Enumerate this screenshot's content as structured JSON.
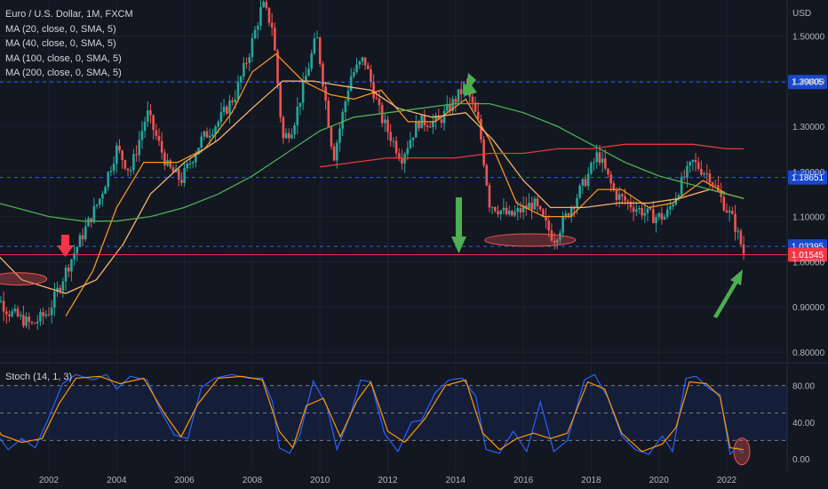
{
  "chart_data": [
    {
      "type": "candlestick",
      "title": "Euro / U.S. Dollar, 1M, FXCM",
      "indicators": [
        "MA (20, close, 0, SMA, 5)",
        "MA (40, close, 0, SMA, 5)",
        "MA (100, close, 0, SMA, 5)",
        "MA (200, close, 0, SMA, 5)"
      ],
      "y_unit": "USD",
      "y_ticks": [
        "1.50000",
        "1.40000",
        "1.30000",
        "1.20000",
        "1.10000",
        "1.00000",
        "0.90000",
        "0.80000"
      ],
      "x_ticks": [
        "2002",
        "2004",
        "2006",
        "2008",
        "2010",
        "2012",
        "2014",
        "2016",
        "2018",
        "2020",
        "2022"
      ],
      "ylim": [
        0.77,
        1.62
      ],
      "close_path": [
        [
          2000.0,
          0.97
        ],
        [
          2000.8,
          0.89
        ],
        [
          2001.5,
          0.86
        ],
        [
          2002.0,
          0.89
        ],
        [
          2002.5,
          0.98
        ],
        [
          2003.0,
          1.06
        ],
        [
          2003.5,
          1.14
        ],
        [
          2004.0,
          1.25
        ],
        [
          2004.4,
          1.2
        ],
        [
          2004.9,
          1.33
        ],
        [
          2005.5,
          1.21
        ],
        [
          2005.9,
          1.18
        ],
        [
          2006.5,
          1.27
        ],
        [
          2007.0,
          1.31
        ],
        [
          2007.5,
          1.37
        ],
        [
          2007.9,
          1.46
        ],
        [
          2008.3,
          1.57
        ],
        [
          2008.6,
          1.52
        ],
        [
          2008.9,
          1.27
        ],
        [
          2009.2,
          1.3
        ],
        [
          2009.9,
          1.5
        ],
        [
          2010.4,
          1.23
        ],
        [
          2010.9,
          1.41
        ],
        [
          2011.3,
          1.45
        ],
        [
          2011.8,
          1.32
        ],
        [
          2012.4,
          1.23
        ],
        [
          2012.9,
          1.31
        ],
        [
          2013.5,
          1.31
        ],
        [
          2014.3,
          1.39
        ],
        [
          2014.7,
          1.3
        ],
        [
          2015.0,
          1.13
        ],
        [
          2015.6,
          1.1
        ],
        [
          2016.3,
          1.13
        ],
        [
          2016.9,
          1.05
        ],
        [
          2017.4,
          1.12
        ],
        [
          2017.9,
          1.19
        ],
        [
          2018.2,
          1.24
        ],
        [
          2018.7,
          1.15
        ],
        [
          2019.3,
          1.12
        ],
        [
          2019.8,
          1.1
        ],
        [
          2020.2,
          1.1
        ],
        [
          2020.7,
          1.18
        ],
        [
          2021.0,
          1.22
        ],
        [
          2021.5,
          1.19
        ],
        [
          2021.9,
          1.13
        ],
        [
          2022.2,
          1.09
        ],
        [
          2022.5,
          1.02
        ]
      ],
      "ma_series": [
        {
          "name": "MA (20, close, 0, SMA, 5)",
          "color": "#f79420",
          "points": [
            [
              2002.5,
              0.88
            ],
            [
              2003.3,
              0.98
            ],
            [
              2004.0,
              1.12
            ],
            [
              2004.8,
              1.22
            ],
            [
              2005.8,
              1.22
            ],
            [
              2006.6,
              1.25
            ],
            [
              2007.4,
              1.33
            ],
            [
              2008.0,
              1.42
            ],
            [
              2008.7,
              1.46
            ],
            [
              2009.5,
              1.4
            ],
            [
              2010.3,
              1.37
            ],
            [
              2011.0,
              1.36
            ],
            [
              2011.8,
              1.38
            ],
            [
              2012.6,
              1.31
            ],
            [
              2013.4,
              1.31
            ],
            [
              2014.3,
              1.36
            ],
            [
              2015.0,
              1.27
            ],
            [
              2015.8,
              1.13
            ],
            [
              2016.6,
              1.1
            ],
            [
              2017.4,
              1.1
            ],
            [
              2018.2,
              1.16
            ],
            [
              2018.9,
              1.16
            ],
            [
              2019.7,
              1.12
            ],
            [
              2020.4,
              1.13
            ],
            [
              2021.3,
              1.18
            ],
            [
              2022.0,
              1.15
            ],
            [
              2022.5,
              1.14
            ]
          ]
        },
        {
          "name": "MA (40, close, 0, SMA, 5)",
          "color": "#f6b26b",
          "points": [
            [
              2000.3,
              1.03
            ],
            [
              2001.2,
              0.96
            ],
            [
              2002.5,
              0.93
            ],
            [
              2003.4,
              0.96
            ],
            [
              2004.2,
              1.04
            ],
            [
              2005.0,
              1.15
            ],
            [
              2006.0,
              1.22
            ],
            [
              2007.0,
              1.27
            ],
            [
              2008.0,
              1.34
            ],
            [
              2008.9,
              1.4
            ],
            [
              2009.8,
              1.4
            ],
            [
              2010.6,
              1.39
            ],
            [
              2011.5,
              1.38
            ],
            [
              2012.3,
              1.34
            ],
            [
              2013.3,
              1.32
            ],
            [
              2014.3,
              1.33
            ],
            [
              2015.1,
              1.27
            ],
            [
              2016.0,
              1.18
            ],
            [
              2016.8,
              1.12
            ],
            [
              2017.8,
              1.12
            ],
            [
              2018.8,
              1.13
            ],
            [
              2019.7,
              1.13
            ],
            [
              2020.6,
              1.14
            ],
            [
              2021.5,
              1.16
            ],
            [
              2022.5,
              1.14
            ]
          ]
        },
        {
          "name": "MA (100, close, 0, SMA, 5)",
          "color": "#4caf50",
          "points": [
            [
              2000.0,
              1.14
            ],
            [
              2001.0,
              1.12
            ],
            [
              2002.0,
              1.1
            ],
            [
              2003.0,
              1.09
            ],
            [
              2004.0,
              1.09
            ],
            [
              2005.0,
              1.1
            ],
            [
              2006.0,
              1.12
            ],
            [
              2007.0,
              1.15
            ],
            [
              2008.0,
              1.19
            ],
            [
              2009.0,
              1.24
            ],
            [
              2010.0,
              1.29
            ],
            [
              2011.0,
              1.32
            ],
            [
              2012.0,
              1.33
            ],
            [
              2013.0,
              1.34
            ],
            [
              2014.0,
              1.35
            ],
            [
              2015.0,
              1.35
            ],
            [
              2016.0,
              1.33
            ],
            [
              2017.0,
              1.3
            ],
            [
              2018.0,
              1.26
            ],
            [
              2019.0,
              1.22
            ],
            [
              2020.0,
              1.19
            ],
            [
              2021.0,
              1.17
            ],
            [
              2022.0,
              1.15
            ],
            [
              2022.5,
              1.14
            ]
          ]
        },
        {
          "name": "MA (200, close, 0, SMA, 5)",
          "color": "#e53935",
          "points": [
            [
              2010.0,
              1.21
            ],
            [
              2011.0,
              1.22
            ],
            [
              2012.0,
              1.23
            ],
            [
              2013.0,
              1.23
            ],
            [
              2014.0,
              1.23
            ],
            [
              2015.0,
              1.24
            ],
            [
              2016.0,
              1.24
            ],
            [
              2017.0,
              1.25
            ],
            [
              2018.0,
              1.25
            ],
            [
              2019.0,
              1.26
            ],
            [
              2020.0,
              1.26
            ],
            [
              2021.0,
              1.26
            ],
            [
              2022.0,
              1.25
            ],
            [
              2022.5,
              1.25
            ]
          ]
        }
      ],
      "price_lines": [
        {
          "label": "1.39805",
          "value": 1.39805,
          "badge": "#1848cc"
        },
        {
          "label": "1.18651",
          "value": 1.18651,
          "badge": "#1848cc"
        },
        {
          "label": "1.03395",
          "value": 1.03395,
          "badge": "#1848cc"
        },
        {
          "label": "1.01545",
          "value": 1.01545,
          "badge": "#f23645"
        }
      ]
    },
    {
      "type": "line",
      "title": "Stoch (14, 1, 3)",
      "y_ticks": [
        "80.00",
        "40.00",
        "0.00"
      ],
      "ylim": [
        -8,
        100
      ],
      "band": [
        20,
        80
      ],
      "series": [
        {
          "color": "#2962ff",
          "points": [
            [
              2000.0,
              58
            ],
            [
              2000.4,
              30
            ],
            [
              2000.8,
              10
            ],
            [
              2001.2,
              22
            ],
            [
              2001.6,
              12
            ],
            [
              2002.0,
              45
            ],
            [
              2002.4,
              82
            ],
            [
              2002.8,
              92
            ],
            [
              2003.3,
              86
            ],
            [
              2003.7,
              92
            ],
            [
              2004.0,
              76
            ],
            [
              2004.4,
              90
            ],
            [
              2004.9,
              86
            ],
            [
              2005.3,
              52
            ],
            [
              2005.7,
              26
            ],
            [
              2006.1,
              22
            ],
            [
              2006.5,
              78
            ],
            [
              2006.9,
              88
            ],
            [
              2007.4,
              92
            ],
            [
              2007.9,
              88
            ],
            [
              2008.3,
              88
            ],
            [
              2008.6,
              62
            ],
            [
              2008.8,
              12
            ],
            [
              2009.1,
              6
            ],
            [
              2009.4,
              25
            ],
            [
              2009.8,
              85
            ],
            [
              2010.2,
              58
            ],
            [
              2010.5,
              10
            ],
            [
              2010.9,
              48
            ],
            [
              2011.2,
              86
            ],
            [
              2011.5,
              84
            ],
            [
              2011.9,
              28
            ],
            [
              2012.3,
              8
            ],
            [
              2012.7,
              40
            ],
            [
              2013.0,
              42
            ],
            [
              2013.4,
              72
            ],
            [
              2013.8,
              86
            ],
            [
              2014.2,
              88
            ],
            [
              2014.6,
              68
            ],
            [
              2014.9,
              10
            ],
            [
              2015.3,
              6
            ],
            [
              2015.7,
              30
            ],
            [
              2016.1,
              8
            ],
            [
              2016.5,
              62
            ],
            [
              2016.9,
              8
            ],
            [
              2017.3,
              20
            ],
            [
              2017.8,
              86
            ],
            [
              2018.1,
              92
            ],
            [
              2018.5,
              66
            ],
            [
              2018.9,
              25
            ],
            [
              2019.3,
              10
            ],
            [
              2019.7,
              5
            ],
            [
              2020.1,
              25
            ],
            [
              2020.4,
              8
            ],
            [
              2020.8,
              88
            ],
            [
              2021.1,
              90
            ],
            [
              2021.5,
              76
            ],
            [
              2021.8,
              70
            ],
            [
              2022.1,
              5
            ],
            [
              2022.3,
              12
            ],
            [
              2022.5,
              6
            ]
          ]
        },
        {
          "color": "#ff9800",
          "points": [
            [
              2000.0,
              62
            ],
            [
              2000.6,
              26
            ],
            [
              2001.2,
              18
            ],
            [
              2001.8,
              22
            ],
            [
              2002.3,
              60
            ],
            [
              2002.8,
              88
            ],
            [
              2003.5,
              90
            ],
            [
              2004.1,
              82
            ],
            [
              2004.8,
              88
            ],
            [
              2005.4,
              50
            ],
            [
              2005.9,
              24
            ],
            [
              2006.4,
              60
            ],
            [
              2007.0,
              88
            ],
            [
              2007.7,
              90
            ],
            [
              2008.3,
              86
            ],
            [
              2008.8,
              30
            ],
            [
              2009.2,
              12
            ],
            [
              2009.6,
              58
            ],
            [
              2010.1,
              66
            ],
            [
              2010.6,
              24
            ],
            [
              2011.1,
              64
            ],
            [
              2011.5,
              84
            ],
            [
              2012.0,
              30
            ],
            [
              2012.5,
              18
            ],
            [
              2013.1,
              44
            ],
            [
              2013.7,
              80
            ],
            [
              2014.3,
              86
            ],
            [
              2014.8,
              28
            ],
            [
              2015.3,
              10
            ],
            [
              2015.8,
              22
            ],
            [
              2016.3,
              28
            ],
            [
              2016.8,
              22
            ],
            [
              2017.3,
              28
            ],
            [
              2017.9,
              84
            ],
            [
              2018.4,
              76
            ],
            [
              2018.9,
              28
            ],
            [
              2019.5,
              8
            ],
            [
              2020.1,
              16
            ],
            [
              2020.5,
              34
            ],
            [
              2020.9,
              84
            ],
            [
              2021.4,
              82
            ],
            [
              2021.8,
              68
            ],
            [
              2022.1,
              12
            ],
            [
              2022.5,
              10
            ]
          ]
        }
      ]
    }
  ]
}
